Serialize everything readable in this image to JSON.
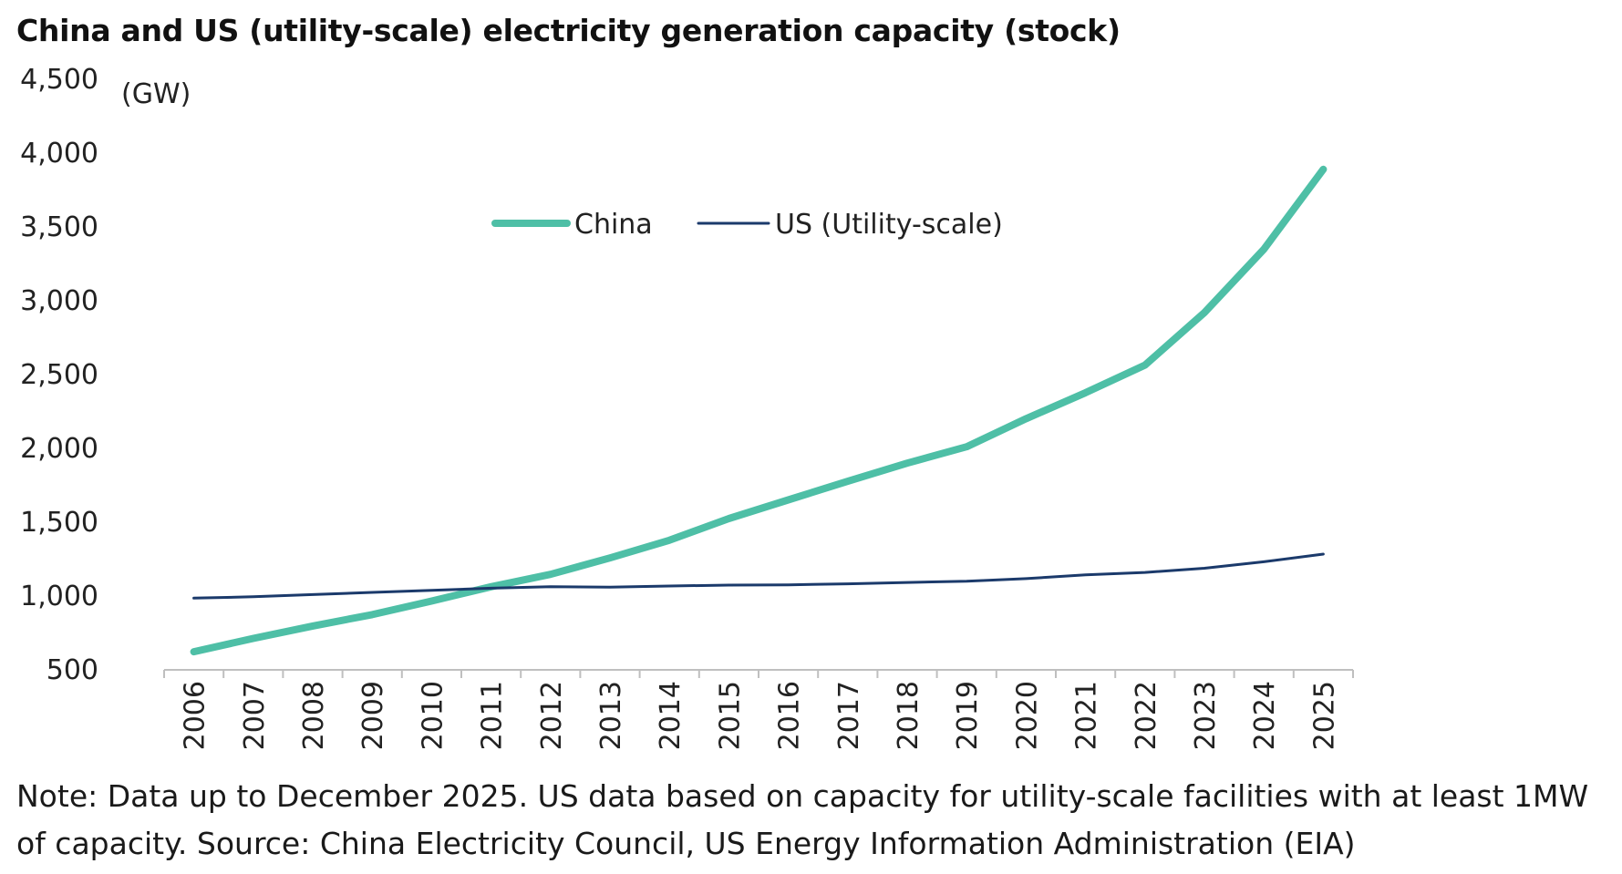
{
  "chart_data": {
    "type": "line",
    "title": "China and US (utility-scale) electricity generation capacity (stock)",
    "unit_label": "(GW)",
    "x": [
      "2006",
      "2007",
      "2008",
      "2009",
      "2010",
      "2011",
      "2012",
      "2013",
      "2014",
      "2015",
      "2016",
      "2017",
      "2018",
      "2019",
      "2020",
      "2021",
      "2022",
      "2023",
      "2024",
      "2025"
    ],
    "y_ticks": [
      "500",
      "1,000",
      "1,500",
      "2,000",
      "2,500",
      "3,000",
      "3,500",
      "4,000",
      "4,500"
    ],
    "ylim": [
      500,
      4500
    ],
    "grid": false,
    "legend_position": "top-center",
    "series": [
      {
        "name": "China",
        "color": "#4ebfa6",
        "values": [
          623,
          713,
          797,
          874,
          966,
          1063,
          1147,
          1258,
          1378,
          1525,
          1651,
          1777,
          1900,
          2011,
          2201,
          2377,
          2564,
          2920,
          3349,
          3890
        ]
      },
      {
        "name": "US (Utility-scale)",
        "color": "#1b3a6b",
        "values": [
          986,
          995,
          1010,
          1025,
          1039,
          1053,
          1063,
          1060,
          1068,
          1074,
          1076,
          1083,
          1092,
          1100,
          1118,
          1144,
          1160,
          1188,
          1232,
          1284
        ]
      }
    ]
  },
  "note": "Note: Data up to December 2025. US data based on capacity for utility-scale facilities with at least 1MW of capacity. Source: China Electricity Council, US Energy Information Administration (EIA)"
}
